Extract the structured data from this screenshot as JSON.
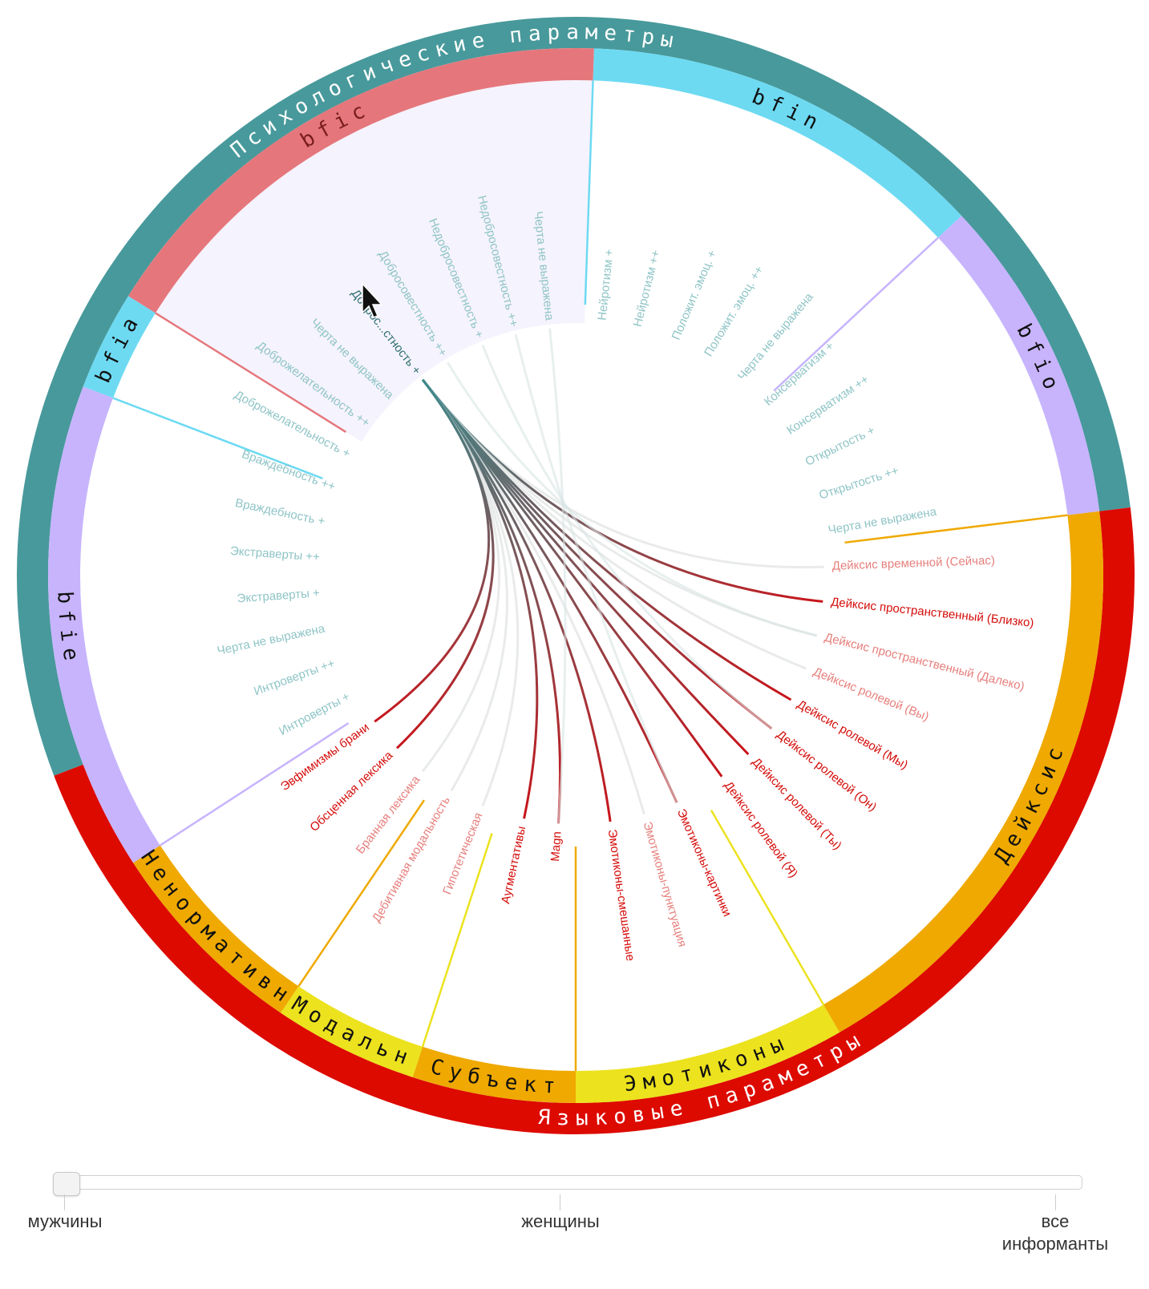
{
  "diagram": {
    "outer_groups": [
      {
        "label": "Психологические параметры",
        "color": "#48999b",
        "start": -111,
        "end": 83
      },
      {
        "label": "Языковые параметры",
        "color": "#dd0a00",
        "start": 83,
        "end": 249
      }
    ],
    "groups": [
      {
        "label": "bfic",
        "color": "#e5777c",
        "start": -58,
        "end": 2
      },
      {
        "label": "bfin",
        "color": "#6ddaf2",
        "start": 2,
        "end": 47
      },
      {
        "label": "bfio",
        "color": "#c7b4fd",
        "start": 47,
        "end": 83
      },
      {
        "label": "Дейксис",
        "color": "#efa900",
        "start": 83,
        "end": 150
      },
      {
        "label": "Эмотиконы",
        "color": "#ece21e",
        "start": 150,
        "end": 180
      },
      {
        "label": "Субъект",
        "color": "#efa900",
        "start": 180,
        "end": 198
      },
      {
        "label": "Модальн",
        "color": "#ece21e",
        "start": 198,
        "end": 214
      },
      {
        "label": "Ненормативн",
        "color": "#efa900",
        "start": 214,
        "end": 237
      },
      {
        "label": "bfie",
        "color": "#c7b4fd",
        "start": 237,
        "end": 291
      },
      {
        "label": "bfia",
        "color": "#6ddaf2",
        "start": 291,
        "end": 302
      }
    ],
    "nodes": [
      {
        "label": "Доброс...стность +",
        "angle": -38,
        "group": "bfic",
        "state": "active"
      },
      {
        "label": "Добросовестность ++",
        "angle": -31,
        "group": "bfic",
        "state": "dim"
      },
      {
        "label": "Недобросовестность +",
        "angle": -22,
        "group": "bfic",
        "state": "dim"
      },
      {
        "label": "Недобросовестность ++",
        "angle": -14,
        "group": "bfic",
        "state": "dim"
      },
      {
        "label": "Черта не выражена",
        "angle": -6,
        "group": "bfic",
        "state": "dim"
      },
      {
        "label": "Нейротизм +",
        "angle": 6,
        "group": "bfin",
        "state": "dim"
      },
      {
        "label": "Нейротизм ++",
        "angle": 14,
        "group": "bfin",
        "state": "dim"
      },
      {
        "label": "Положит. эмоц. +",
        "angle": 23,
        "group": "bfin",
        "state": "dim"
      },
      {
        "label": "Положит. эмоц. ++",
        "angle": 31,
        "group": "bfin",
        "state": "dim"
      },
      {
        "label": "Черта не выражена",
        "angle": 40,
        "group": "bfin",
        "state": "dim"
      },
      {
        "label": "Консерватизм +",
        "angle": 48,
        "group": "bfio",
        "state": "dim"
      },
      {
        "label": "Консерватизм ++",
        "angle": 56,
        "group": "bfio",
        "state": "dim"
      },
      {
        "label": "Открытость +",
        "angle": 64,
        "group": "bfio",
        "state": "dim"
      },
      {
        "label": "Открытость ++",
        "angle": 72,
        "group": "bfio",
        "state": "dim"
      },
      {
        "label": "Черта не выражена",
        "angle": 80,
        "group": "bfio",
        "state": "dim"
      },
      {
        "label": "Дейксис временной (Сейчас)",
        "angle": 88,
        "group": "Дейксис",
        "state": "faint"
      },
      {
        "label": "Дейксис пространственный (Близко)",
        "angle": 96,
        "group": "Дейксис",
        "state": "link"
      },
      {
        "label": "Дейксис пространственный (Далеко)",
        "angle": 104,
        "group": "Дейксис",
        "state": "faint"
      },
      {
        "label": "Дейксис ролевой (Вы)",
        "angle": 112,
        "group": "Дейксис",
        "state": "faint"
      },
      {
        "label": "Дейксис ролевой (Мы)",
        "angle": 120,
        "group": "Дейксис",
        "state": "link"
      },
      {
        "label": "Дейксис ролевой (Он)",
        "angle": 128,
        "group": "Дейксис",
        "state": "link"
      },
      {
        "label": "Дейксис ролевой (Ты)",
        "angle": 136,
        "group": "Дейксис",
        "state": "link"
      },
      {
        "label": "Дейксис ролевой (Я)",
        "angle": 144,
        "group": "Дейксис",
        "state": "link"
      },
      {
        "label": "Эмотиконы-картинки",
        "angle": 156,
        "group": "Эмотиконы",
        "state": "link"
      },
      {
        "label": "Эмотиконы-пунктуация",
        "angle": 164,
        "group": "Эмотиконы",
        "state": "faint"
      },
      {
        "label": "Эмотиконы-смешанные",
        "angle": 172,
        "group": "Эмотиконы",
        "state": "link"
      },
      {
        "label": "Magn",
        "angle": 184,
        "group": "Субъект",
        "state": "link"
      },
      {
        "label": "Аугментативы",
        "angle": 192,
        "group": "Субъект",
        "state": "link"
      },
      {
        "label": "Гипотетическая",
        "angle": 202,
        "group": "Модальн",
        "state": "faint"
      },
      {
        "label": "Дебитивная модальность",
        "angle": 210,
        "group": "Модальн",
        "state": "faint"
      },
      {
        "label": "Бранная лексика",
        "angle": 218,
        "group": "Ненормативн",
        "state": "faint"
      },
      {
        "label": "Обсценная лексика",
        "angle": 226,
        "group": "Ненормативн",
        "state": "link"
      },
      {
        "label": "Эвфимизмы брани",
        "angle": 234,
        "group": "Ненормативн",
        "state": "link"
      },
      {
        "label": "Интроверты +",
        "angle": 242,
        "group": "bfie",
        "state": "dim"
      },
      {
        "label": "Интроверты ++",
        "angle": 250,
        "group": "bfie",
        "state": "dim"
      },
      {
        "label": "Черта не выражена",
        "angle": 258,
        "group": "bfie",
        "state": "dim"
      },
      {
        "label": "Экстраверты +",
        "angle": 266,
        "group": "bfie",
        "state": "dim"
      },
      {
        "label": "Экстраверты ++",
        "angle": 274,
        "group": "bfie",
        "state": "dim"
      },
      {
        "label": "Враждебность +",
        "angle": 282,
        "group": "bfia",
        "state": "dim"
      },
      {
        "label": "Враждебность ++",
        "angle": 290,
        "group": "bfia",
        "state": "dim"
      },
      {
        "label": "Доброжелательность +",
        "angle": 298,
        "group": "bfia",
        "state": "dim"
      },
      {
        "label": "Доброжелательность ++",
        "angle": 306,
        "group": "bfia",
        "state": "dim"
      },
      {
        "label": "Черта не выражена",
        "angle": 314,
        "group": "bfia",
        "state": "dim"
      }
    ],
    "active_node": "Доброс...стность +",
    "colors": {
      "psych_label": "#8fc4c6",
      "active_label": "#2f6f71",
      "link_label": "#d40d0a",
      "faint_label": "#e6807d",
      "highlight_sector": "#f5f3fd",
      "link_start": "#3d8a8c",
      "link_end": "#c8141a",
      "faint_link": "#dfe3e3"
    }
  },
  "slider": {
    "labels": [
      "мужчины",
      "женщины",
      "все информанты"
    ],
    "value": 0
  }
}
